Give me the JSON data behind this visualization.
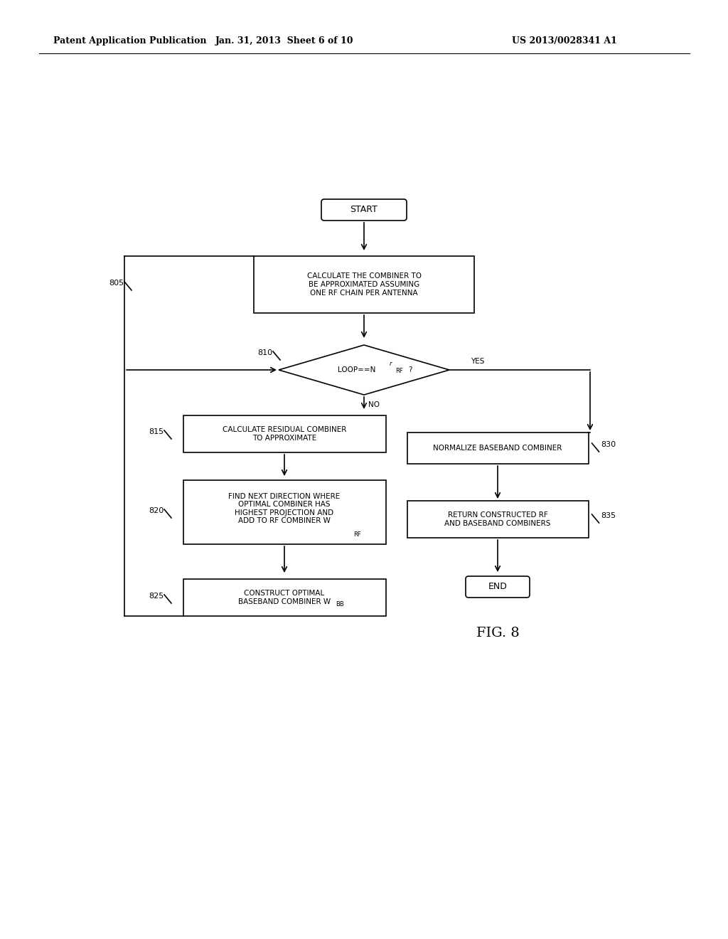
{
  "bg_color": "#ffffff",
  "header_left": "Patent Application Publication",
  "header_center": "Jan. 31, 2013  Sheet 6 of 10",
  "header_right": "US 2013/0028341 A1",
  "fig_label": "FIG. 8"
}
